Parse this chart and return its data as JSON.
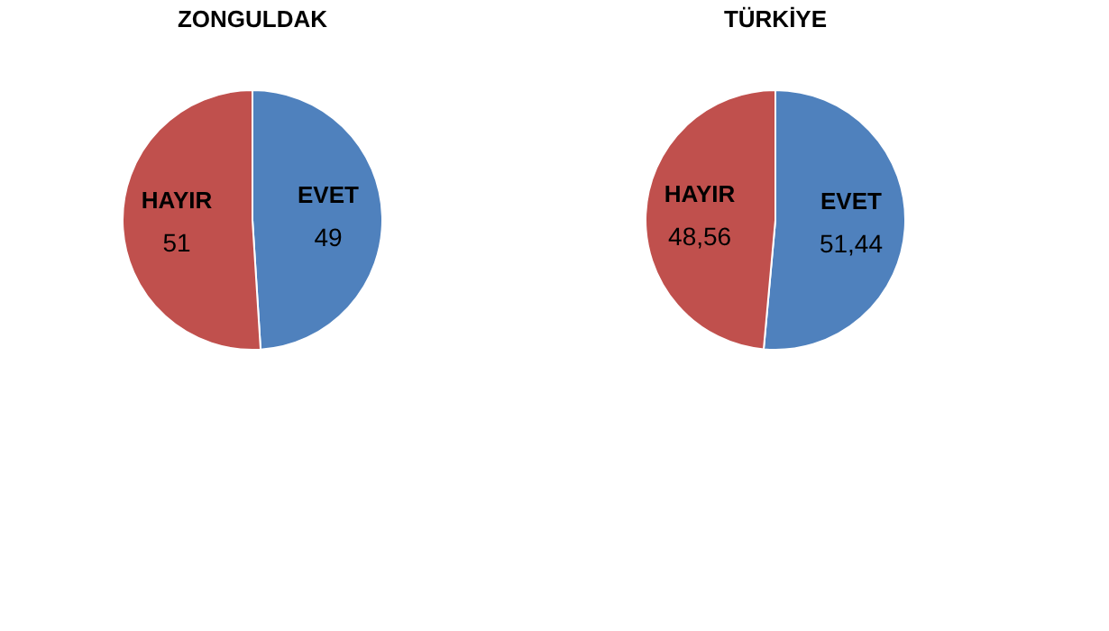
{
  "chart_data": [
    {
      "type": "pie",
      "title": "ZONGULDAK",
      "categories": [
        "EVET",
        "HAYIR"
      ],
      "values": [
        49,
        51
      ],
      "colors": [
        "#4f81bd",
        "#c0504d"
      ],
      "value_labels": [
        "49",
        "51"
      ]
    },
    {
      "type": "pie",
      "title": "TÜRKİYE",
      "categories": [
        "EVET",
        "HAYIR"
      ],
      "values": [
        51.44,
        48.56
      ],
      "colors": [
        "#4f81bd",
        "#c0504d"
      ],
      "value_labels": [
        "51,44",
        "48,56"
      ]
    }
  ]
}
